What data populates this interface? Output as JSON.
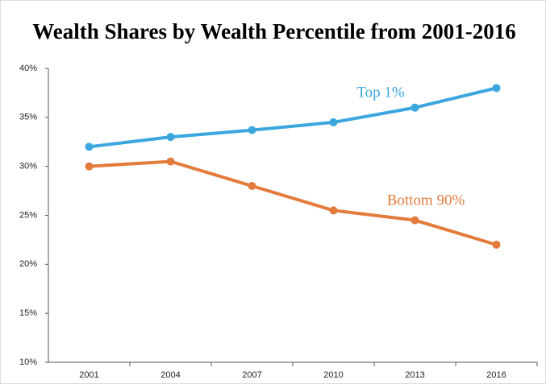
{
  "chart_data": {
    "type": "line",
    "title": "Wealth Shares by Wealth Percentile from 2001-2016",
    "categories": [
      "2001",
      "2004",
      "2007",
      "2010",
      "2013",
      "2016"
    ],
    "series": [
      {
        "name": "Top 1%",
        "color": "#3ba7de",
        "values": [
          32,
          33,
          33.7,
          34.5,
          36,
          38
        ]
      },
      {
        "name": "Bottom 90%",
        "color": "#e27b3b",
        "values": [
          30,
          30.5,
          28,
          25.5,
          24.5,
          22
        ]
      }
    ],
    "ylim": [
      10,
      40
    ],
    "yticks": [
      {
        "value": 10,
        "label": "10%"
      },
      {
        "value": 15,
        "label": "15%"
      },
      {
        "value": 20,
        "label": "20%"
      },
      {
        "value": 25,
        "label": "25%"
      },
      {
        "value": 30,
        "label": "30%"
      },
      {
        "value": 35,
        "label": "35%"
      },
      {
        "value": 40,
        "label": "40%"
      }
    ],
    "grid": false
  }
}
